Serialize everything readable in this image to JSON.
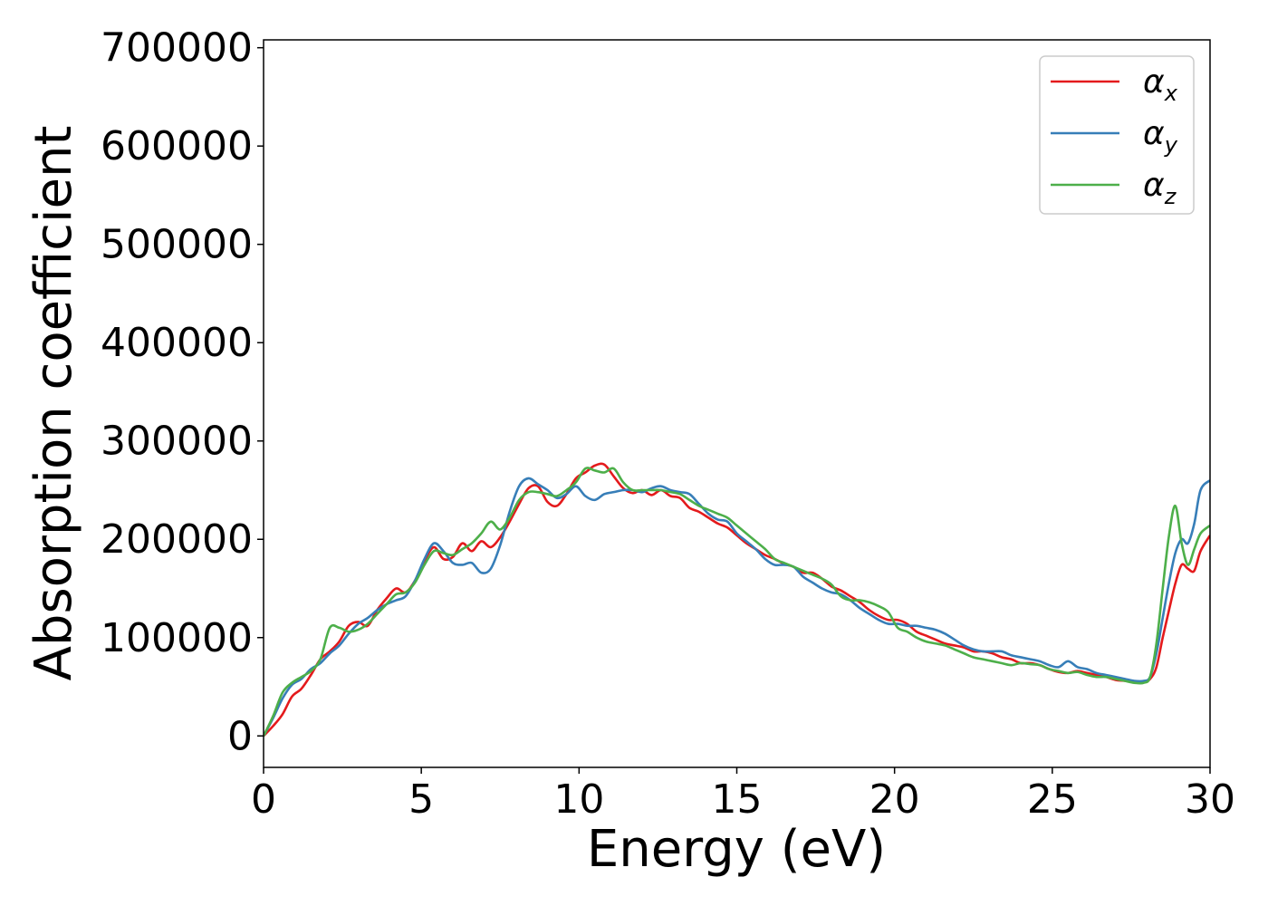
{
  "chart_data": {
    "type": "line",
    "title": "",
    "xlabel": "Energy (eV)",
    "ylabel": "Absorption coefficient",
    "xlim": [
      0,
      30
    ],
    "ylim": [
      -32000,
      708000
    ],
    "xticks": [
      0,
      5,
      10,
      15,
      20,
      25,
      30
    ],
    "xtick_labels": [
      "0",
      "5",
      "10",
      "15",
      "20",
      "25",
      "30"
    ],
    "yticks": [
      0,
      100000,
      200000,
      300000,
      400000,
      500000,
      600000,
      700000
    ],
    "ytick_labels": [
      "0",
      "100000",
      "200000",
      "300000",
      "400000",
      "500000",
      "600000",
      "700000"
    ],
    "grid": false,
    "legend_position": "top-right",
    "series": [
      {
        "name": "α",
        "subscript": "x",
        "color": "#e41a1c",
        "x": [
          0,
          0.3,
          0.6,
          0.9,
          1.2,
          1.5,
          1.8,
          2.1,
          2.4,
          2.7,
          3.0,
          3.3,
          3.6,
          3.9,
          4.2,
          4.5,
          4.8,
          5.1,
          5.4,
          5.7,
          6.0,
          6.3,
          6.6,
          6.9,
          7.2,
          7.5,
          7.8,
          8.1,
          8.4,
          8.7,
          9.0,
          9.3,
          9.6,
          9.9,
          10.2,
          10.5,
          10.8,
          11.1,
          11.4,
          11.7,
          12.0,
          12.3,
          12.6,
          12.9,
          13.2,
          13.5,
          13.8,
          14.1,
          14.4,
          14.7,
          15.0,
          15.3,
          15.6,
          15.9,
          16.2,
          16.5,
          16.8,
          17.1,
          17.4,
          17.7,
          18.0,
          18.3,
          18.6,
          18.9,
          19.2,
          19.5,
          19.8,
          20.1,
          20.4,
          20.7,
          21.0,
          21.3,
          21.6,
          21.9,
          22.2,
          22.5,
          22.8,
          23.1,
          23.4,
          23.7,
          24.0,
          24.3,
          24.6,
          24.9,
          25.2,
          25.5,
          25.8,
          26.1,
          26.4,
          26.7,
          27.0,
          27.3,
          27.6,
          27.9,
          28.1,
          28.3,
          28.5,
          28.7,
          28.9,
          29.1,
          29.3,
          29.5,
          29.7,
          30.0
        ],
        "values": [
          0,
          10000,
          22000,
          40000,
          48000,
          62000,
          78000,
          86000,
          96000,
          112000,
          116000,
          112000,
          128000,
          140000,
          150000,
          146000,
          158000,
          178000,
          192000,
          180000,
          182000,
          196000,
          188000,
          198000,
          192000,
          202000,
          218000,
          236000,
          252000,
          254000,
          238000,
          234000,
          246000,
          262000,
          268000,
          275000,
          276000,
          264000,
          252000,
          247000,
          250000,
          245000,
          250000,
          244000,
          242000,
          232000,
          228000,
          222000,
          216000,
          212000,
          204000,
          196000,
          190000,
          184000,
          180000,
          175000,
          172000,
          166000,
          166000,
          160000,
          152000,
          148000,
          142000,
          136000,
          128000,
          122000,
          118000,
          118000,
          114000,
          106000,
          102000,
          98000,
          94000,
          92000,
          90000,
          86000,
          86000,
          84000,
          80000,
          78000,
          74000,
          74000,
          72000,
          68000,
          65000,
          64000,
          66000,
          64000,
          62000,
          60000,
          57000,
          56000,
          55000,
          55000,
          58000,
          70000,
          100000,
          128000,
          155000,
          174000,
          170000,
          168000,
          188000,
          204000
        ]
      },
      {
        "name": "α",
        "subscript": "y",
        "color": "#377eb8",
        "x": [
          0,
          0.3,
          0.6,
          0.9,
          1.2,
          1.5,
          1.8,
          2.1,
          2.4,
          2.7,
          3.0,
          3.3,
          3.6,
          3.9,
          4.2,
          4.5,
          4.8,
          5.1,
          5.4,
          5.7,
          6.0,
          6.3,
          6.6,
          6.9,
          7.2,
          7.5,
          7.8,
          8.1,
          8.4,
          8.7,
          9.0,
          9.3,
          9.6,
          9.9,
          10.2,
          10.5,
          10.8,
          11.1,
          11.4,
          11.7,
          12.0,
          12.3,
          12.6,
          12.9,
          13.2,
          13.5,
          13.8,
          14.1,
          14.4,
          14.7,
          15.0,
          15.3,
          15.6,
          15.9,
          16.2,
          16.5,
          16.8,
          17.1,
          17.4,
          17.7,
          18.0,
          18.3,
          18.6,
          18.9,
          19.2,
          19.5,
          19.8,
          20.1,
          20.4,
          20.7,
          21.0,
          21.3,
          21.6,
          21.9,
          22.2,
          22.5,
          22.8,
          23.1,
          23.4,
          23.7,
          24.0,
          24.3,
          24.6,
          24.9,
          25.2,
          25.5,
          25.8,
          26.1,
          26.4,
          26.7,
          27.0,
          27.3,
          27.6,
          27.9,
          28.1,
          28.3,
          28.5,
          28.7,
          28.9,
          29.1,
          29.3,
          29.5,
          29.7,
          30.0
        ],
        "values": [
          0,
          18000,
          38000,
          52000,
          58000,
          68000,
          74000,
          84000,
          92000,
          104000,
          114000,
          120000,
          128000,
          134000,
          138000,
          142000,
          158000,
          180000,
          196000,
          188000,
          176000,
          174000,
          176000,
          166000,
          170000,
          194000,
          228000,
          254000,
          262000,
          256000,
          250000,
          242000,
          246000,
          254000,
          244000,
          240000,
          246000,
          248000,
          250000,
          250000,
          248000,
          252000,
          254000,
          250000,
          248000,
          246000,
          236000,
          226000,
          220000,
          218000,
          206000,
          198000,
          190000,
          180000,
          174000,
          174000,
          172000,
          162000,
          156000,
          150000,
          146000,
          144000,
          138000,
          130000,
          124000,
          118000,
          114000,
          114000,
          112000,
          112000,
          110000,
          108000,
          104000,
          98000,
          92000,
          88000,
          86000,
          86000,
          86000,
          82000,
          80000,
          78000,
          76000,
          72000,
          70000,
          76000,
          70000,
          68000,
          64000,
          62000,
          60000,
          58000,
          56000,
          56000,
          60000,
          84000,
          120000,
          156000,
          186000,
          200000,
          196000,
          216000,
          250000,
          260000
        ]
      },
      {
        "name": "α",
        "subscript": "z",
        "color": "#4daf4a",
        "x": [
          0,
          0.3,
          0.6,
          0.9,
          1.2,
          1.5,
          1.8,
          2.1,
          2.4,
          2.7,
          3.0,
          3.3,
          3.6,
          3.9,
          4.2,
          4.5,
          4.8,
          5.1,
          5.4,
          5.7,
          6.0,
          6.3,
          6.6,
          6.9,
          7.2,
          7.5,
          7.8,
          8.1,
          8.4,
          8.7,
          9.0,
          9.3,
          9.6,
          9.9,
          10.2,
          10.5,
          10.8,
          11.1,
          11.4,
          11.7,
          12.0,
          12.3,
          12.6,
          12.9,
          13.2,
          13.5,
          13.8,
          14.1,
          14.4,
          14.7,
          15.0,
          15.3,
          15.6,
          15.9,
          16.2,
          16.5,
          16.8,
          17.1,
          17.4,
          17.7,
          18.0,
          18.3,
          18.6,
          18.9,
          19.2,
          19.5,
          19.8,
          20.1,
          20.4,
          20.7,
          21.0,
          21.3,
          21.6,
          21.9,
          22.2,
          22.5,
          22.8,
          23.1,
          23.4,
          23.7,
          24.0,
          24.3,
          24.6,
          24.9,
          25.2,
          25.5,
          25.8,
          26.1,
          26.4,
          26.7,
          27.0,
          27.3,
          27.6,
          27.9,
          28.1,
          28.3,
          28.5,
          28.7,
          28.9,
          29.1,
          29.3,
          29.5,
          29.7,
          30.0
        ],
        "values": [
          0,
          20000,
          44000,
          54000,
          60000,
          66000,
          78000,
          110000,
          110000,
          106000,
          108000,
          114000,
          124000,
          134000,
          144000,
          146000,
          156000,
          174000,
          188000,
          186000,
          184000,
          190000,
          196000,
          206000,
          218000,
          210000,
          222000,
          240000,
          248000,
          248000,
          246000,
          244000,
          250000,
          258000,
          272000,
          270000,
          268000,
          272000,
          258000,
          250000,
          250000,
          250000,
          250000,
          248000,
          246000,
          240000,
          234000,
          230000,
          226000,
          222000,
          214000,
          206000,
          198000,
          190000,
          180000,
          176000,
          172000,
          168000,
          164000,
          160000,
          154000,
          142000,
          138000,
          138000,
          136000,
          132000,
          126000,
          110000,
          106000,
          100000,
          96000,
          94000,
          92000,
          88000,
          84000,
          80000,
          78000,
          76000,
          74000,
          72000,
          74000,
          73000,
          72000,
          68000,
          66000,
          64000,
          65000,
          62000,
          60000,
          60000,
          58000,
          56000,
          54000,
          54000,
          60000,
          94000,
          150000,
          204000,
          234000,
          196000,
          174000,
          190000,
          206000,
          214000
        ]
      }
    ]
  }
}
